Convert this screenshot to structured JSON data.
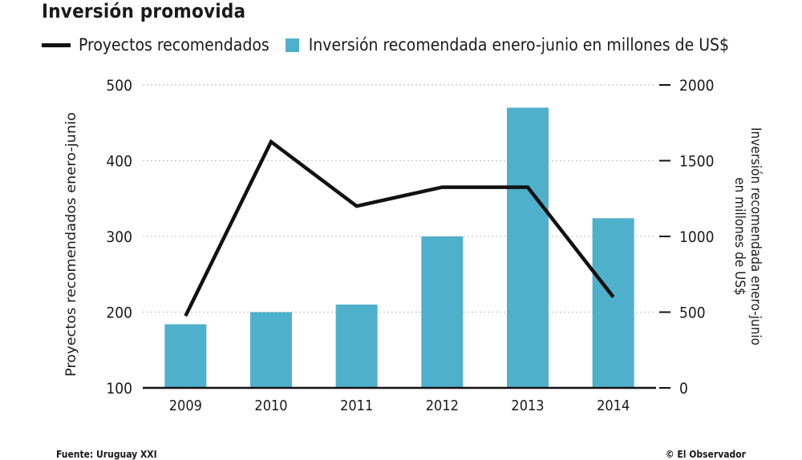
{
  "title": "Inversión promovida",
  "colors": {
    "bar": "#4fb0cc",
    "line": "#111111",
    "grid": "#c9c9c9"
  },
  "source": "Fuente: Uruguay XXI",
  "credit": "© El Observador",
  "chart_data": {
    "type": "bar+line",
    "categories": [
      "2009",
      "2010",
      "2011",
      "2012",
      "2013",
      "2014"
    ],
    "series": [
      {
        "name": "Inversión recomendada enero-junio en millones de US$",
        "type": "bar",
        "axis": "right",
        "values": [
          420,
          500,
          550,
          1000,
          1850,
          1120
        ]
      },
      {
        "name": "Proyectos recomendados",
        "type": "line",
        "axis": "left",
        "values": [
          195,
          425,
          340,
          365,
          365,
          220
        ]
      }
    ],
    "y_left": {
      "label": "Proyectos recomendados enero-junio",
      "min": 100,
      "max": 500,
      "ticks": [
        100,
        200,
        300,
        400,
        500
      ]
    },
    "y_right": {
      "label": "Inversión recomendada enero-junio en millones de US$",
      "min": 0,
      "max": 2000,
      "ticks": [
        0,
        500,
        1000,
        1500,
        2000
      ]
    },
    "grid": true,
    "legend_position": "top"
  }
}
